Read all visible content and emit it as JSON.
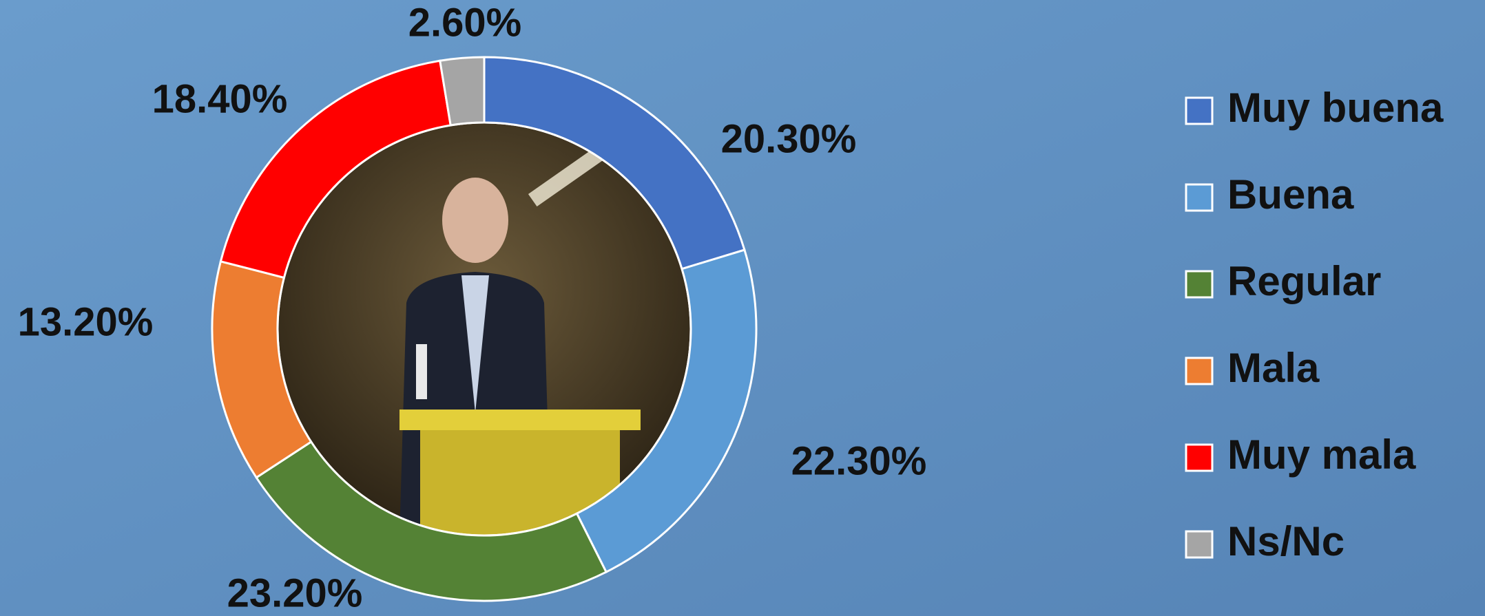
{
  "chart_data": {
    "type": "donut",
    "categories": [
      "Muy buena",
      "Buena",
      "Regular",
      "Mala",
      "Muy mala",
      "Ns/Nc"
    ],
    "values": [
      20.3,
      22.3,
      23.2,
      13.2,
      18.4,
      2.6
    ],
    "value_labels": [
      "20.30%",
      "22.30%",
      "23.20%",
      "13.20%",
      "18.40%",
      "2.60%"
    ],
    "colors": [
      "#4472c4",
      "#5b9bd5",
      "#548235",
      "#ed7d31",
      "#ff0000",
      "#a5a5a5"
    ],
    "legend": "right"
  }
}
